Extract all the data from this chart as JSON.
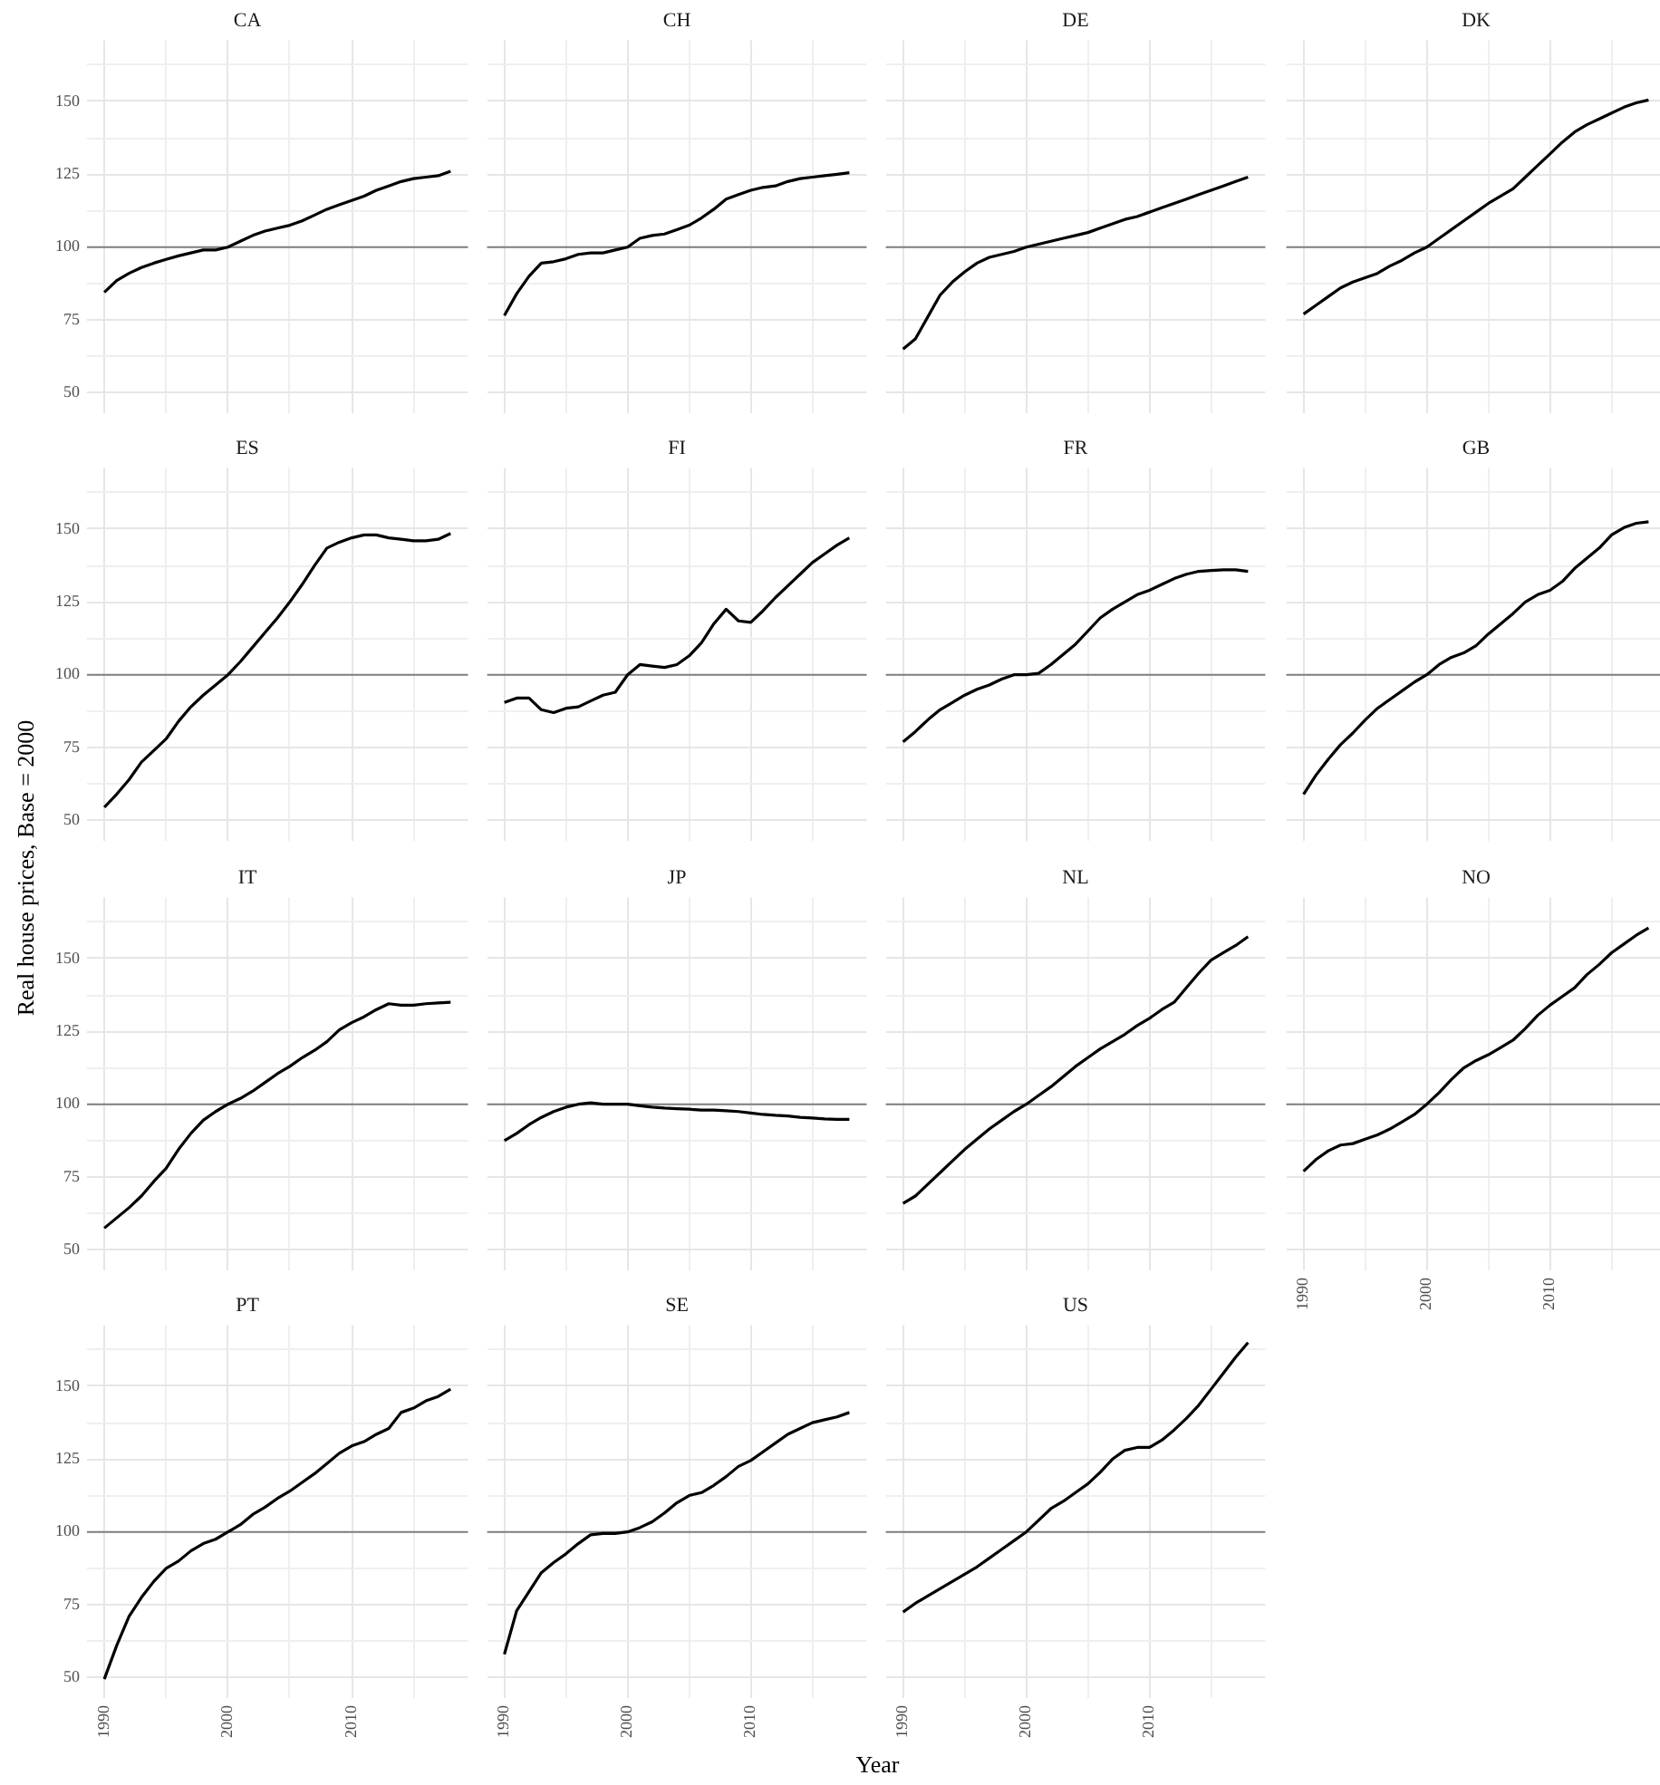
{
  "chart_data": [
    {
      "type": "line",
      "title": "CA",
      "tick_labels": "y",
      "x": [
        1990,
        1991,
        1992,
        1993,
        1994,
        1995,
        1996,
        1997,
        1998,
        1999,
        2000,
        2001,
        2002,
        2003,
        2004,
        2005,
        2006,
        2007,
        2008,
        2009,
        2010,
        2011,
        2012,
        2013,
        2014,
        2015,
        2016,
        2017,
        2018
      ],
      "values": [
        84.5,
        88.5,
        91,
        93,
        94.5,
        95.8,
        97,
        98,
        99,
        99,
        100,
        102,
        104,
        105.5,
        106.5,
        107.5,
        109,
        111,
        113,
        114.5,
        116,
        117.5,
        119.5,
        121,
        122.5,
        123.5,
        124,
        124.5,
        126
      ],
      "color": "#000000",
      "xlim": [
        1988.6,
        2019.4
      ],
      "ylim": [
        43,
        171
      ],
      "xticks": [
        1990,
        {
          "value": 1995,
          "label": null
        },
        2000,
        {
          "value": 2005,
          "label": null
        },
        2010,
        {
          "value": 2015,
          "label": null
        }
      ],
      "yticks": [
        50,
        {
          "value": 62.5,
          "label": null
        },
        75,
        {
          "value": 87.5,
          "label": null
        },
        100,
        {
          "value": 112.5,
          "label": null
        },
        125,
        {
          "value": 137.5,
          "label": null
        },
        150,
        {
          "value": 162.5,
          "label": null
        }
      ],
      "grid": true,
      "ref_lines": [
        {
          "axis": "y",
          "value": 100,
          "color": "#7f7f7f"
        }
      ]
    },
    {
      "type": "line",
      "title": "CH",
      "tick_labels": false,
      "x": [
        1990,
        1991,
        1992,
        1993,
        1994,
        1995,
        1996,
        1997,
        1998,
        1999,
        2000,
        2001,
        2002,
        2003,
        2004,
        2005,
        2006,
        2007,
        2008,
        2009,
        2010,
        2011,
        2012,
        2013,
        2014,
        2015,
        2016,
        2017,
        2018
      ],
      "values": [
        76.5,
        84,
        90,
        94.5,
        95,
        96,
        97.5,
        98,
        98,
        99,
        100,
        103,
        104,
        104.5,
        106,
        107.5,
        110,
        113,
        116.5,
        118,
        119.5,
        120.5,
        121,
        122.5,
        123.5,
        124,
        124.5,
        125,
        125.5
      ],
      "color": "#000000",
      "xlim": [
        1988.6,
        2019.4
      ],
      "ylim": [
        43,
        171
      ],
      "xticks": [
        1990,
        {
          "value": 1995,
          "label": null
        },
        2000,
        {
          "value": 2005,
          "label": null
        },
        2010,
        {
          "value": 2015,
          "label": null
        }
      ],
      "yticks": [
        50,
        {
          "value": 62.5,
          "label": null
        },
        75,
        {
          "value": 87.5,
          "label": null
        },
        100,
        {
          "value": 112.5,
          "label": null
        },
        125,
        {
          "value": 137.5,
          "label": null
        },
        150,
        {
          "value": 162.5,
          "label": null
        }
      ],
      "grid": true,
      "ref_lines": [
        {
          "axis": "y",
          "value": 100,
          "color": "#7f7f7f"
        }
      ]
    },
    {
      "type": "line",
      "title": "DE",
      "tick_labels": false,
      "x": [
        1990,
        1991,
        1992,
        1993,
        1994,
        1995,
        1996,
        1997,
        1998,
        1999,
        2000,
        2001,
        2002,
        2003,
        2004,
        2005,
        2006,
        2007,
        2008,
        2009,
        2010,
        2011,
        2012,
        2013,
        2014,
        2015,
        2016,
        2017,
        2018
      ],
      "values": [
        65,
        68.5,
        76,
        83.5,
        88,
        91.5,
        94.5,
        96.5,
        97.5,
        98.5,
        100,
        101,
        102,
        103,
        104,
        105,
        106.5,
        108,
        109.5,
        110.5,
        112,
        113.5,
        115,
        116.5,
        118,
        119.5,
        121,
        122.5,
        124
      ],
      "color": "#000000",
      "xlim": [
        1988.6,
        2019.4
      ],
      "ylim": [
        43,
        171
      ],
      "xticks": [
        1990,
        {
          "value": 1995,
          "label": null
        },
        2000,
        {
          "value": 2005,
          "label": null
        },
        2010,
        {
          "value": 2015,
          "label": null
        }
      ],
      "yticks": [
        50,
        {
          "value": 62.5,
          "label": null
        },
        75,
        {
          "value": 87.5,
          "label": null
        },
        100,
        {
          "value": 112.5,
          "label": null
        },
        125,
        {
          "value": 137.5,
          "label": null
        },
        150,
        {
          "value": 162.5,
          "label": null
        }
      ],
      "grid": true,
      "ref_lines": [
        {
          "axis": "y",
          "value": 100,
          "color": "#7f7f7f"
        }
      ]
    },
    {
      "type": "line",
      "title": "DK",
      "tick_labels": false,
      "x": [
        1990,
        1991,
        1992,
        1993,
        1994,
        1995,
        1996,
        1997,
        1998,
        1999,
        2000,
        2001,
        2002,
        2003,
        2004,
        2005,
        2006,
        2007,
        2008,
        2009,
        2010,
        2011,
        2012,
        2013,
        2014,
        2015,
        2016,
        2017,
        2018
      ],
      "values": [
        77,
        80,
        83,
        86,
        88,
        89.5,
        91,
        93.5,
        95.5,
        98,
        100,
        103,
        106,
        109,
        112,
        115,
        117.5,
        120,
        124,
        128,
        132,
        136,
        139.5,
        142,
        144,
        146,
        148,
        149.5,
        150.5
      ],
      "color": "#000000",
      "xlim": [
        1988.6,
        2019.4
      ],
      "ylim": [
        43,
        171
      ],
      "xticks": [
        1990,
        {
          "value": 1995,
          "label": null
        },
        2000,
        {
          "value": 2005,
          "label": null
        },
        2010,
        {
          "value": 2015,
          "label": null
        }
      ],
      "yticks": [
        50,
        {
          "value": 62.5,
          "label": null
        },
        75,
        {
          "value": 87.5,
          "label": null
        },
        100,
        {
          "value": 112.5,
          "label": null
        },
        125,
        {
          "value": 137.5,
          "label": null
        },
        150,
        {
          "value": 162.5,
          "label": null
        }
      ],
      "grid": true,
      "ref_lines": [
        {
          "axis": "y",
          "value": 100,
          "color": "#7f7f7f"
        }
      ]
    },
    {
      "type": "line",
      "title": "ES",
      "tick_labels": "y",
      "x": [
        1990,
        1991,
        1992,
        1993,
        1994,
        1995,
        1996,
        1997,
        1998,
        1999,
        2000,
        2001,
        2002,
        2003,
        2004,
        2005,
        2006,
        2007,
        2008,
        2009,
        2010,
        2011,
        2012,
        2013,
        2014,
        2015,
        2016,
        2017,
        2018
      ],
      "values": [
        54.5,
        59,
        64,
        70,
        74,
        78,
        84,
        89,
        93,
        96.5,
        100,
        104.5,
        109.5,
        114.5,
        119.5,
        125,
        131,
        137.5,
        143.5,
        145.5,
        147,
        148,
        148,
        147,
        146.5,
        146,
        146,
        146.5,
        148.5
      ],
      "color": "#000000",
      "xlim": [
        1988.6,
        2019.4
      ],
      "ylim": [
        43,
        171
      ],
      "xticks": [
        1990,
        {
          "value": 1995,
          "label": null
        },
        2000,
        {
          "value": 2005,
          "label": null
        },
        2010,
        {
          "value": 2015,
          "label": null
        }
      ],
      "yticks": [
        50,
        {
          "value": 62.5,
          "label": null
        },
        75,
        {
          "value": 87.5,
          "label": null
        },
        100,
        {
          "value": 112.5,
          "label": null
        },
        125,
        {
          "value": 137.5,
          "label": null
        },
        150,
        {
          "value": 162.5,
          "label": null
        }
      ],
      "grid": true,
      "ref_lines": [
        {
          "axis": "y",
          "value": 100,
          "color": "#7f7f7f"
        }
      ]
    },
    {
      "type": "line",
      "title": "FI",
      "tick_labels": false,
      "x": [
        1990,
        1991,
        1992,
        1993,
        1994,
        1995,
        1996,
        1997,
        1998,
        1999,
        2000,
        2001,
        2002,
        2003,
        2004,
        2005,
        2006,
        2007,
        2008,
        2009,
        2010,
        2011,
        2012,
        2013,
        2014,
        2015,
        2016,
        2017,
        2018
      ],
      "values": [
        90.5,
        92,
        92,
        88,
        87,
        88.5,
        89,
        91,
        93,
        94,
        100,
        103.5,
        103,
        102.5,
        103.5,
        106.5,
        111,
        117.5,
        122.5,
        118.5,
        118,
        122,
        126.5,
        130.5,
        134.5,
        138.5,
        141.5,
        144.5,
        147
      ],
      "color": "#000000",
      "xlim": [
        1988.6,
        2019.4
      ],
      "ylim": [
        43,
        171
      ],
      "xticks": [
        1990,
        {
          "value": 1995,
          "label": null
        },
        2000,
        {
          "value": 2005,
          "label": null
        },
        2010,
        {
          "value": 2015,
          "label": null
        }
      ],
      "yticks": [
        50,
        {
          "value": 62.5,
          "label": null
        },
        75,
        {
          "value": 87.5,
          "label": null
        },
        100,
        {
          "value": 112.5,
          "label": null
        },
        125,
        {
          "value": 137.5,
          "label": null
        },
        150,
        {
          "value": 162.5,
          "label": null
        }
      ],
      "grid": true,
      "ref_lines": [
        {
          "axis": "y",
          "value": 100,
          "color": "#7f7f7f"
        }
      ]
    },
    {
      "type": "line",
      "title": "FR",
      "tick_labels": false,
      "x": [
        1990,
        1991,
        1992,
        1993,
        1994,
        1995,
        1996,
        1997,
        1998,
        1999,
        2000,
        2001,
        2002,
        2003,
        2004,
        2005,
        2006,
        2007,
        2008,
        2009,
        2010,
        2011,
        2012,
        2013,
        2014,
        2015,
        2016,
        2017,
        2018
      ],
      "values": [
        77,
        80.5,
        84.5,
        88,
        90.5,
        93,
        95,
        96.5,
        98.5,
        100,
        100,
        100.5,
        103.5,
        107,
        110.5,
        115,
        119.5,
        122.5,
        125,
        127.5,
        129,
        131,
        133,
        134.5,
        135.5,
        135.8,
        136,
        136,
        135.5
      ],
      "color": "#000000",
      "xlim": [
        1988.6,
        2019.4
      ],
      "ylim": [
        43,
        171
      ],
      "xticks": [
        1990,
        {
          "value": 1995,
          "label": null
        },
        2000,
        {
          "value": 2005,
          "label": null
        },
        2010,
        {
          "value": 2015,
          "label": null
        }
      ],
      "yticks": [
        50,
        {
          "value": 62.5,
          "label": null
        },
        75,
        {
          "value": 87.5,
          "label": null
        },
        100,
        {
          "value": 112.5,
          "label": null
        },
        125,
        {
          "value": 137.5,
          "label": null
        },
        150,
        {
          "value": 162.5,
          "label": null
        }
      ],
      "grid": true,
      "ref_lines": [
        {
          "axis": "y",
          "value": 100,
          "color": "#7f7f7f"
        }
      ]
    },
    {
      "type": "line",
      "title": "GB",
      "tick_labels": false,
      "x": [
        1990,
        1991,
        1992,
        1993,
        1994,
        1995,
        1996,
        1997,
        1998,
        1999,
        2000,
        2001,
        2002,
        2003,
        2004,
        2005,
        2006,
        2007,
        2008,
        2009,
        2010,
        2011,
        2012,
        2013,
        2014,
        2015,
        2016,
        2017,
        2018
      ],
      "values": [
        59,
        65.5,
        71,
        76,
        80,
        84.5,
        88.5,
        91.5,
        94.5,
        97.5,
        100,
        103.5,
        106,
        107.5,
        110,
        114,
        117.5,
        121,
        125,
        127.5,
        129,
        132,
        136.5,
        140,
        143.5,
        148,
        150.5,
        152,
        152.5
      ],
      "color": "#000000",
      "xlim": [
        1988.6,
        2019.4
      ],
      "ylim": [
        43,
        171
      ],
      "xticks": [
        1990,
        {
          "value": 1995,
          "label": null
        },
        2000,
        {
          "value": 2005,
          "label": null
        },
        2010,
        {
          "value": 2015,
          "label": null
        }
      ],
      "yticks": [
        50,
        {
          "value": 62.5,
          "label": null
        },
        75,
        {
          "value": 87.5,
          "label": null
        },
        100,
        {
          "value": 112.5,
          "label": null
        },
        125,
        {
          "value": 137.5,
          "label": null
        },
        150,
        {
          "value": 162.5,
          "label": null
        }
      ],
      "grid": true,
      "ref_lines": [
        {
          "axis": "y",
          "value": 100,
          "color": "#7f7f7f"
        }
      ]
    },
    {
      "type": "line",
      "title": "IT",
      "tick_labels": "y",
      "ylabel": "Real house prices, Base = 2000",
      "x": [
        1990,
        1991,
        1992,
        1993,
        1994,
        1995,
        1996,
        1997,
        1998,
        1999,
        2000,
        2001,
        2002,
        2003,
        2004,
        2005,
        2006,
        2007,
        2008,
        2009,
        2010,
        2011,
        2012,
        2013,
        2014,
        2015,
        2016,
        2017,
        2018
      ],
      "values": [
        57.5,
        61,
        64.5,
        68.5,
        73.5,
        78,
        84.5,
        90,
        94.5,
        97.5,
        100,
        102,
        104.5,
        107.5,
        110.5,
        113,
        116,
        118.5,
        121.5,
        125.5,
        128,
        130,
        132.5,
        134.5,
        134,
        134,
        134.5,
        134.8,
        135
      ],
      "color": "#000000",
      "xlim": [
        1988.6,
        2019.4
      ],
      "ylim": [
        43,
        171
      ],
      "xticks": [
        1990,
        {
          "value": 1995,
          "label": null
        },
        2000,
        {
          "value": 2005,
          "label": null
        },
        2010,
        {
          "value": 2015,
          "label": null
        }
      ],
      "yticks": [
        50,
        {
          "value": 62.5,
          "label": null
        },
        75,
        {
          "value": 87.5,
          "label": null
        },
        100,
        {
          "value": 112.5,
          "label": null
        },
        125,
        {
          "value": 137.5,
          "label": null
        },
        150,
        {
          "value": 162.5,
          "label": null
        }
      ],
      "grid": true,
      "ref_lines": [
        {
          "axis": "y",
          "value": 100,
          "color": "#7f7f7f"
        }
      ]
    },
    {
      "type": "line",
      "title": "JP",
      "tick_labels": false,
      "x": [
        1990,
        1991,
        1992,
        1993,
        1994,
        1995,
        1996,
        1997,
        1998,
        1999,
        2000,
        2001,
        2002,
        2003,
        2004,
        2005,
        2006,
        2007,
        2008,
        2009,
        2010,
        2011,
        2012,
        2013,
        2014,
        2015,
        2016,
        2017,
        2018
      ],
      "values": [
        87.5,
        90,
        93,
        95.5,
        97.5,
        99,
        100,
        100.5,
        100,
        100,
        100,
        99.5,
        99,
        98.7,
        98.5,
        98.3,
        98,
        98,
        97.8,
        97.5,
        97,
        96.5,
        96.2,
        96,
        95.5,
        95.3,
        95,
        94.8,
        94.8
      ],
      "color": "#000000",
      "xlim": [
        1988.6,
        2019.4
      ],
      "ylim": [
        43,
        171
      ],
      "xticks": [
        1990,
        {
          "value": 1995,
          "label": null
        },
        2000,
        {
          "value": 2005,
          "label": null
        },
        2010,
        {
          "value": 2015,
          "label": null
        }
      ],
      "yticks": [
        50,
        {
          "value": 62.5,
          "label": null
        },
        75,
        {
          "value": 87.5,
          "label": null
        },
        100,
        {
          "value": 112.5,
          "label": null
        },
        125,
        {
          "value": 137.5,
          "label": null
        },
        150,
        {
          "value": 162.5,
          "label": null
        }
      ],
      "grid": true,
      "ref_lines": [
        {
          "axis": "y",
          "value": 100,
          "color": "#7f7f7f"
        }
      ]
    },
    {
      "type": "line",
      "title": "NL",
      "tick_labels": false,
      "x": [
        1990,
        1991,
        1992,
        1993,
        1994,
        1995,
        1996,
        1997,
        1998,
        1999,
        2000,
        2001,
        2002,
        2003,
        2004,
        2005,
        2006,
        2007,
        2008,
        2009,
        2010,
        2011,
        2012,
        2013,
        2014,
        2015,
        2016,
        2017,
        2018
      ],
      "values": [
        66,
        68.5,
        72.5,
        76.5,
        80.5,
        84.5,
        88,
        91.5,
        94.5,
        97.5,
        100,
        103,
        106,
        109.5,
        113,
        116,
        119,
        121.5,
        124,
        127,
        129.5,
        132.5,
        135,
        140,
        145,
        149.5,
        152,
        154.5,
        157.5
      ],
      "color": "#000000",
      "xlim": [
        1988.6,
        2019.4
      ],
      "ylim": [
        43,
        171
      ],
      "xticks": [
        1990,
        {
          "value": 1995,
          "label": null
        },
        2000,
        {
          "value": 2005,
          "label": null
        },
        2010,
        {
          "value": 2015,
          "label": null
        }
      ],
      "yticks": [
        50,
        {
          "value": 62.5,
          "label": null
        },
        75,
        {
          "value": 87.5,
          "label": null
        },
        100,
        {
          "value": 112.5,
          "label": null
        },
        125,
        {
          "value": 137.5,
          "label": null
        },
        150,
        {
          "value": 162.5,
          "label": null
        }
      ],
      "grid": true,
      "ref_lines": [
        {
          "axis": "y",
          "value": 100,
          "color": "#7f7f7f"
        }
      ]
    },
    {
      "type": "line",
      "title": "NO",
      "tick_labels": "x",
      "x": [
        1990,
        1991,
        1992,
        1993,
        1994,
        1995,
        1996,
        1997,
        1998,
        1999,
        2000,
        2001,
        2002,
        2003,
        2004,
        2005,
        2006,
        2007,
        2008,
        2009,
        2010,
        2011,
        2012,
        2013,
        2014,
        2015,
        2016,
        2017,
        2018
      ],
      "values": [
        77,
        81,
        84,
        86,
        86.5,
        88,
        89.5,
        91.5,
        94,
        96.5,
        100,
        104,
        108.5,
        112.5,
        115,
        117,
        119.5,
        122,
        126,
        130.5,
        134,
        137,
        140,
        144.5,
        148,
        152,
        155,
        158,
        160.5
      ],
      "color": "#000000",
      "xlim": [
        1988.6,
        2019.4
      ],
      "ylim": [
        43,
        171
      ],
      "xticks": [
        1990,
        {
          "value": 1995,
          "label": null
        },
        2000,
        {
          "value": 2005,
          "label": null
        },
        2010,
        {
          "value": 2015,
          "label": null
        }
      ],
      "yticks": [
        50,
        {
          "value": 62.5,
          "label": null
        },
        75,
        {
          "value": 87.5,
          "label": null
        },
        100,
        {
          "value": 112.5,
          "label": null
        },
        125,
        {
          "value": 137.5,
          "label": null
        },
        150,
        {
          "value": 162.5,
          "label": null
        }
      ],
      "grid": true,
      "ref_lines": [
        {
          "axis": "y",
          "value": 100,
          "color": "#7f7f7f"
        }
      ]
    },
    {
      "type": "line",
      "title": "PT",
      "x": [
        1990,
        1991,
        1992,
        1993,
        1994,
        1995,
        1996,
        1997,
        1998,
        1999,
        2000,
        2001,
        2002,
        2003,
        2004,
        2005,
        2006,
        2007,
        2008,
        2009,
        2010,
        2011,
        2012,
        2013,
        2014,
        2015,
        2016,
        2017,
        2018
      ],
      "values": [
        49.5,
        61,
        71,
        77.5,
        83,
        87.5,
        90,
        93.5,
        96,
        97.5,
        100,
        102.5,
        106,
        108.5,
        111.5,
        114,
        117,
        120,
        123.5,
        127,
        129.5,
        131,
        133.5,
        135.5,
        141,
        142.5,
        145,
        146.5,
        149
      ],
      "color": "#000000",
      "xlim": [
        1988.6,
        2019.4
      ],
      "ylim": [
        43,
        171
      ],
      "xticks": [
        1990,
        {
          "value": 1995,
          "label": null
        },
        2000,
        {
          "value": 2005,
          "label": null
        },
        2010,
        {
          "value": 2015,
          "label": null
        }
      ],
      "yticks": [
        50,
        {
          "value": 62.5,
          "label": null
        },
        75,
        {
          "value": 87.5,
          "label": null
        },
        100,
        {
          "value": 112.5,
          "label": null
        },
        125,
        {
          "value": 137.5,
          "label": null
        },
        150,
        {
          "value": 162.5,
          "label": null
        }
      ],
      "grid": true,
      "ref_lines": [
        {
          "axis": "y",
          "value": 100,
          "color": "#7f7f7f"
        }
      ]
    },
    {
      "type": "line",
      "title": "SE",
      "tick_labels": "x",
      "xlabel": "Year",
      "x": [
        1990,
        1991,
        1992,
        1993,
        1994,
        1995,
        1996,
        1997,
        1998,
        1999,
        2000,
        2001,
        2002,
        2003,
        2004,
        2005,
        2006,
        2007,
        2008,
        2009,
        2010,
        2011,
        2012,
        2013,
        2014,
        2015,
        2016,
        2017,
        2018
      ],
      "values": [
        58,
        73,
        79.5,
        86,
        89.5,
        92.5,
        96,
        99,
        99.5,
        99.5,
        100,
        101.5,
        103.5,
        106.5,
        110,
        112.5,
        113.5,
        116,
        119,
        122.5,
        124.5,
        127.5,
        130.5,
        133.5,
        135.5,
        137.5,
        138.5,
        139.5,
        141
      ],
      "color": "#000000",
      "xlim": [
        1988.6,
        2019.4
      ],
      "ylim": [
        43,
        171
      ],
      "xticks": [
        1990,
        {
          "value": 1995,
          "label": null
        },
        2000,
        {
          "value": 2005,
          "label": null
        },
        2010,
        {
          "value": 2015,
          "label": null
        }
      ],
      "yticks": [
        50,
        {
          "value": 62.5,
          "label": null
        },
        75,
        {
          "value": 87.5,
          "label": null
        },
        100,
        {
          "value": 112.5,
          "label": null
        },
        125,
        {
          "value": 137.5,
          "label": null
        },
        150,
        {
          "value": 162.5,
          "label": null
        }
      ],
      "grid": true,
      "ref_lines": [
        {
          "axis": "y",
          "value": 100,
          "color": "#7f7f7f"
        }
      ]
    },
    {
      "type": "line",
      "title": "US",
      "tick_labels": "x",
      "x": [
        1990,
        1991,
        1992,
        1993,
        1994,
        1995,
        1996,
        1997,
        1998,
        1999,
        2000,
        2001,
        2002,
        2003,
        2004,
        2005,
        2006,
        2007,
        2008,
        2009,
        2010,
        2011,
        2012,
        2013,
        2014,
        2015,
        2016,
        2017,
        2018
      ],
      "values": [
        72.5,
        75.5,
        78,
        80.5,
        83,
        85.5,
        88,
        91,
        94,
        97,
        100,
        104,
        108,
        110.5,
        113.5,
        116.5,
        120.5,
        125,
        128,
        129,
        129,
        131.5,
        135,
        139,
        143.5,
        149,
        154.5,
        160,
        165
      ],
      "color": "#000000",
      "xlim": [
        1988.6,
        2019.4
      ],
      "ylim": [
        43,
        171
      ],
      "xticks": [
        1990,
        {
          "value": 1995,
          "label": null
        },
        2000,
        {
          "value": 2005,
          "label": null
        },
        2010,
        {
          "value": 2015,
          "label": null
        }
      ],
      "yticks": [
        50,
        {
          "value": 62.5,
          "label": null
        },
        75,
        {
          "value": 87.5,
          "label": null
        },
        100,
        {
          "value": 112.5,
          "label": null
        },
        125,
        {
          "value": 137.5,
          "label": null
        },
        150,
        {
          "value": 162.5,
          "label": null
        }
      ],
      "grid": true,
      "ref_lines": [
        {
          "axis": "y",
          "value": 100,
          "color": "#7f7f7f"
        }
      ]
    }
  ]
}
